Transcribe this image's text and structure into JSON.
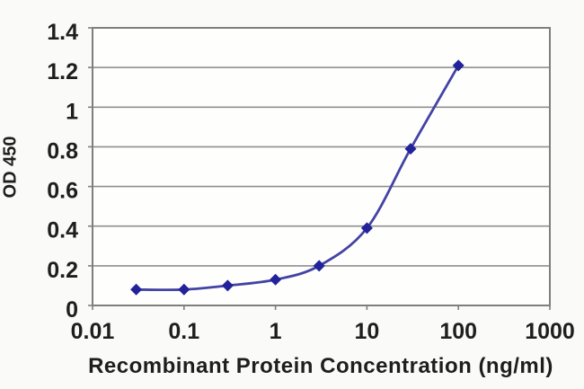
{
  "chart_data": {
    "type": "line",
    "title": "",
    "xlabel": "Recombinant Protein Concentration (ng/ml)",
    "ylabel": "OD 450",
    "x_scale": "log",
    "xlim": [
      0.01,
      1000
    ],
    "ylim": [
      0,
      1.4
    ],
    "x": [
      0.03,
      0.1,
      0.3,
      1,
      3,
      10,
      30,
      100
    ],
    "series": [
      {
        "name": "OD 450",
        "values": [
          0.08,
          0.08,
          0.1,
          0.13,
          0.2,
          0.39,
          0.79,
          1.21
        ]
      }
    ],
    "x_ticks": [
      0.01,
      0.1,
      1,
      10,
      100,
      1000
    ],
    "x_tick_labels": [
      "0.01",
      "0.1",
      "1",
      "10",
      "100",
      "1000"
    ],
    "y_ticks": [
      0,
      0.2,
      0.4,
      0.6,
      0.8,
      1,
      1.2,
      1.4
    ],
    "y_tick_labels": [
      "0",
      "0.2",
      "0.4",
      "0.6",
      "0.8",
      "1",
      "1.2",
      "1.4"
    ],
    "grid": "horizontal",
    "legend": "none",
    "marker": "diamond",
    "line_smooth": true,
    "colors": {
      "line": "#4343a5",
      "marker": "#22229a",
      "gridline": "#8f8f8f",
      "plot_border": "#7f7f7f",
      "plot_bg": "#fefefd",
      "page_bg": "#fafaf8",
      "text": "#1e1e1e"
    }
  }
}
